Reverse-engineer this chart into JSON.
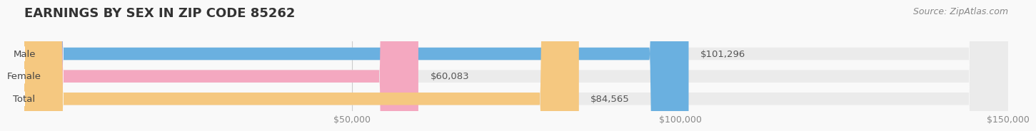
{
  "title": "EARNINGS BY SEX IN ZIP CODE 85262",
  "categories": [
    "Male",
    "Female",
    "Total"
  ],
  "values": [
    101296,
    60083,
    84565
  ],
  "bar_colors": [
    "#6ab0e0",
    "#f4a8c0",
    "#f5c880"
  ],
  "bar_bg_color": "#ebebeb",
  "labels": [
    "$101,296",
    "$60,083",
    "$84,565"
  ],
  "xlim": [
    0,
    150000
  ],
  "xticks": [
    50000,
    100000,
    150000
  ],
  "xtick_labels": [
    "$50,000",
    "$100,000",
    "$150,000"
  ],
  "source_text": "Source: ZipAtlas.com",
  "bg_color": "#f9f9f9",
  "title_fontsize": 13,
  "label_fontsize": 9.5,
  "tick_fontsize": 9,
  "source_fontsize": 9
}
